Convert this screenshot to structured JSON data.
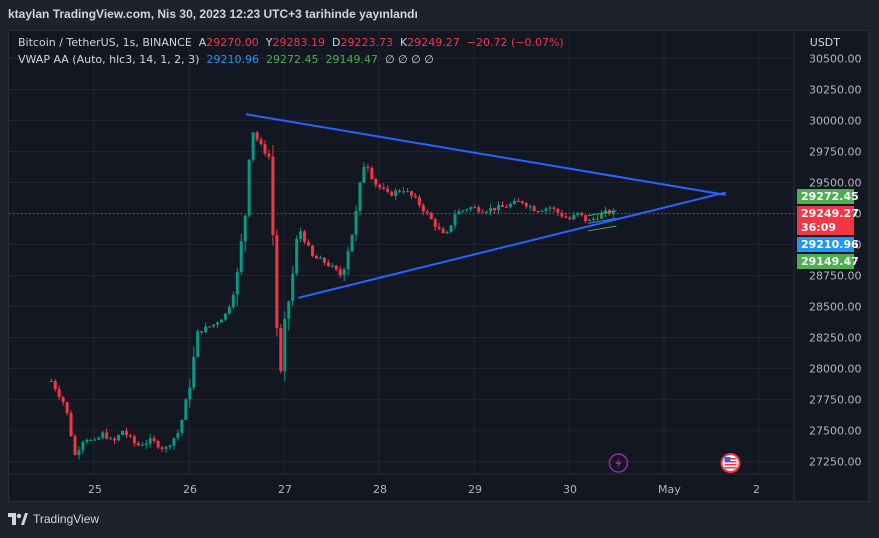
{
  "header": {
    "title": "ktaylan TradingView.com, Nis 30, 2023 12:23 UTC+3 tarihinde yayınlandı"
  },
  "legend": {
    "symbol": "Bitcoin / TetherUS, 1s, BINANCE",
    "open_label": "A",
    "open": "29270.00",
    "high_label": "Y",
    "high": "29283.19",
    "low_label": "D",
    "low": "29223.73",
    "close_label": "K",
    "close": "29249.27",
    "change": "−20.72 (−0.07%)",
    "indicator": "VWAP AA (Auto, hlc3, 14, 1, 2, 3)",
    "ind_values": [
      "29210.96",
      "29272.45",
      "29149.47"
    ],
    "ind_empty": "∅ ∅ ∅ ∅"
  },
  "currency": "USDT",
  "price_tags": [
    {
      "value": "29272.45",
      "color": "#4caf50"
    },
    {
      "value": "29249.27",
      "color": "#f23645"
    },
    {
      "value": "36:09",
      "color": "#f23645"
    },
    {
      "value": "29210.96",
      "color": "#2196f3"
    },
    {
      "value": "29149.47",
      "color": "#4caf50"
    }
  ],
  "footer": {
    "brand": "TradingView"
  },
  "colors": {
    "up": "#089981",
    "down": "#f23645",
    "trendline": "#2962ff",
    "bg": "#131722"
  },
  "chart_data": {
    "type": "candlestick",
    "symbol": "BTCUSDT",
    "interval": "1h",
    "y_ticks": [
      "30500.00",
      "30250.00",
      "30000.00",
      "29750.00",
      "29500.00",
      "29250.00",
      "29000.00",
      "28750.00",
      "28500.00",
      "28250.00",
      "28000.00",
      "27750.00",
      "27500.00",
      "27250.00"
    ],
    "x_ticks": [
      "25",
      "26",
      "27",
      "28",
      "29",
      "30",
      "May",
      "2"
    ],
    "ylim": [
      27150,
      30560
    ],
    "last_price": 29249.27,
    "close_path": [
      [
        24.55,
        27900
      ],
      [
        24.7,
        27700
      ],
      [
        24.8,
        27300
      ],
      [
        24.9,
        27450
      ],
      [
        25.0,
        27400
      ],
      [
        25.1,
        27480
      ],
      [
        25.2,
        27400
      ],
      [
        25.3,
        27500
      ],
      [
        25.45,
        27380
      ],
      [
        25.6,
        27420
      ],
      [
        25.75,
        27350
      ],
      [
        25.9,
        27500
      ],
      [
        26.0,
        27850
      ],
      [
        26.1,
        28300
      ],
      [
        26.25,
        28350
      ],
      [
        26.4,
        28450
      ],
      [
        26.5,
        28700
      ],
      [
        26.6,
        29300
      ],
      [
        26.65,
        29950
      ],
      [
        26.75,
        29800
      ],
      [
        26.85,
        29700
      ],
      [
        26.92,
        28400
      ],
      [
        26.96,
        27900
      ],
      [
        27.0,
        28300
      ],
      [
        27.1,
        28800
      ],
      [
        27.15,
        29150
      ],
      [
        27.3,
        28900
      ],
      [
        27.45,
        28850
      ],
      [
        27.6,
        28750
      ],
      [
        27.75,
        29200
      ],
      [
        27.85,
        29700
      ],
      [
        27.95,
        29500
      ],
      [
        28.1,
        29400
      ],
      [
        28.25,
        29450
      ],
      [
        28.4,
        29350
      ],
      [
        28.6,
        29150
      ],
      [
        28.7,
        29050
      ],
      [
        28.8,
        29250
      ],
      [
        28.95,
        29300
      ],
      [
        29.1,
        29280
      ],
      [
        29.3,
        29300
      ],
      [
        29.5,
        29350
      ],
      [
        29.65,
        29280
      ],
      [
        29.8,
        29300
      ],
      [
        29.9,
        29250
      ],
      [
        30.0,
        29200
      ],
      [
        30.1,
        29250
      ],
      [
        30.2,
        29180
      ],
      [
        30.3,
        29230
      ],
      [
        30.4,
        29260
      ],
      [
        30.5,
        29249.27
      ]
    ],
    "triangle": {
      "upper": [
        [
          26.6,
          30050
        ],
        [
          31.65,
          29400
        ]
      ],
      "lower": [
        [
          27.15,
          28570
        ],
        [
          31.65,
          29420
        ]
      ]
    },
    "vwap_band": {
      "mid": 29210.96,
      "upper": 29272.45,
      "lower": 29149.47
    }
  }
}
